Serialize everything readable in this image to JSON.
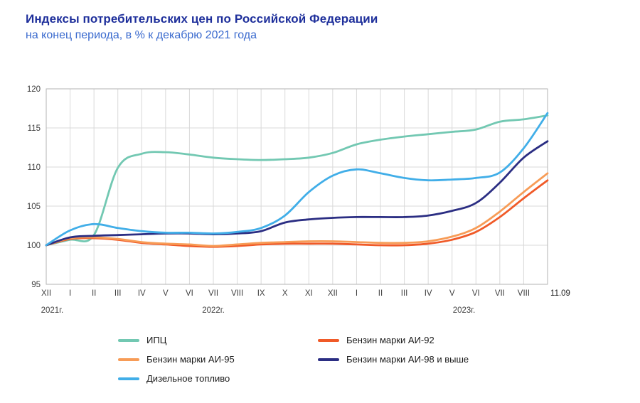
{
  "header": {
    "title": "Индексы потребительских цен по Российской Федерации",
    "subtitle": "на конец периода, в % к декабрю 2021 года"
  },
  "chart_data": {
    "type": "line",
    "title": "Индексы потребительских цен по Российской Федерации",
    "subtitle": "на конец периода, в % к декабрю 2021 года",
    "ylim": [
      95,
      120
    ],
    "yticks": [
      95,
      100,
      105,
      110,
      115,
      120
    ],
    "grid": "on",
    "legend_position": "bottom",
    "x_tick_labels": [
      "XII",
      "I",
      "II",
      "III",
      "IV",
      "V",
      "VI",
      "VII",
      "VIII",
      "IX",
      "X",
      "XI",
      "XII",
      "I",
      "II",
      "III",
      "IV",
      "V",
      "VI",
      "VII",
      "VIII",
      "11.09"
    ],
    "year_labels": [
      {
        "label": "2021г.",
        "tick_index": 0.25
      },
      {
        "label": "2022г.",
        "tick_index": 7
      },
      {
        "label": "2023г.",
        "tick_index": 17.5
      }
    ],
    "series": [
      {
        "name": "ИПЦ",
        "color": "#72c8b2",
        "values": [
          100,
          100.7,
          101.3,
          109.9,
          111.7,
          111.9,
          111.6,
          111.2,
          111.0,
          110.9,
          111.0,
          111.2,
          111.8,
          112.9,
          113.5,
          113.9,
          114.2,
          114.5,
          114.8,
          115.8,
          116.1,
          116.6
        ]
      },
      {
        "name": "Бензин марки АИ-92",
        "color": "#f05a28",
        "values": [
          100,
          100.8,
          100.9,
          100.7,
          100.3,
          100.1,
          99.9,
          99.8,
          99.9,
          100.1,
          100.2,
          100.2,
          100.2,
          100.1,
          100.0,
          100.0,
          100.2,
          100.7,
          101.7,
          103.6,
          106.0,
          108.3
        ]
      },
      {
        "name": "Бензин марки АИ-95",
        "color": "#f79c57",
        "values": [
          100,
          100.9,
          101.0,
          100.8,
          100.4,
          100.2,
          100.1,
          99.9,
          100.1,
          100.3,
          100.4,
          100.5,
          100.5,
          100.4,
          100.3,
          100.3,
          100.5,
          101.1,
          102.2,
          104.3,
          106.8,
          109.2
        ]
      },
      {
        "name": "Бензин марки АИ-98 и выше",
        "color": "#2b2e83",
        "values": [
          100,
          101.0,
          101.2,
          101.3,
          101.4,
          101.5,
          101.5,
          101.4,
          101.5,
          101.8,
          102.9,
          103.3,
          103.5,
          103.6,
          103.6,
          103.6,
          103.8,
          104.4,
          105.4,
          108.0,
          111.2,
          113.3
        ]
      },
      {
        "name": "Дизельное топливо",
        "color": "#41aee8",
        "values": [
          100,
          101.9,
          102.7,
          102.2,
          101.8,
          101.6,
          101.6,
          101.5,
          101.7,
          102.2,
          103.8,
          106.8,
          108.9,
          109.7,
          109.2,
          108.6,
          108.3,
          108.4,
          108.6,
          109.3,
          112.4,
          116.9
        ]
      }
    ]
  }
}
